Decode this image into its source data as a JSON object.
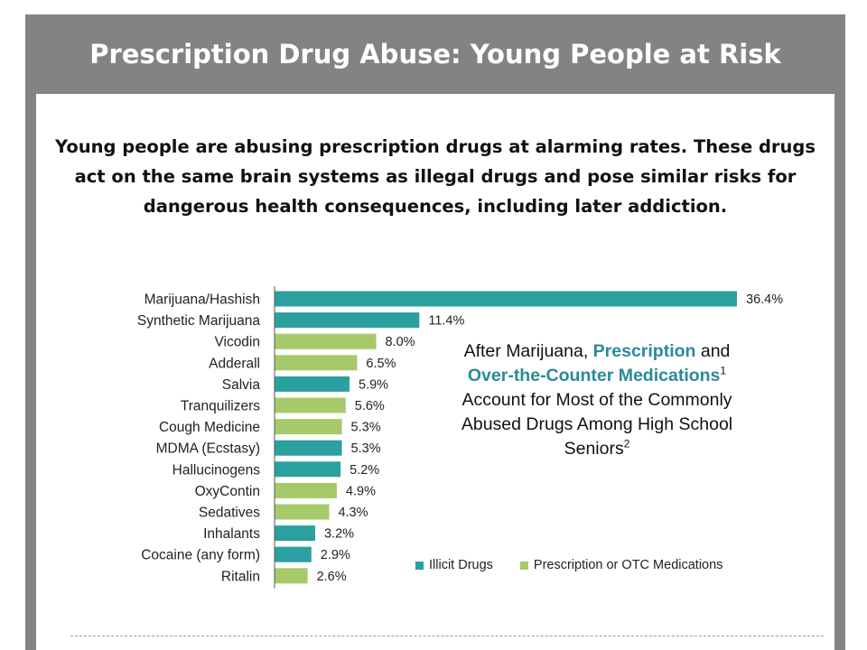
{
  "header": {
    "title": "Prescription Drug Abuse: Young People at Risk"
  },
  "intro": {
    "lines": [
      "Young people are abusing prescription drugs at alarming rates. These drugs",
      "act on the same brain systems as illegal drugs and pose similar risks for",
      "dangerous health consequences, including later addiction."
    ]
  },
  "callout": {
    "part1": "After Marijuana, ",
    "hl1": "Prescription",
    "part2": " and ",
    "hl2": "Over-the-Counter Medications",
    "sup1": "1",
    "part3": " Account for Most of the Commonly Abused Drugs Among High School Seniors",
    "sup2": "2"
  },
  "colors": {
    "illicit": "#2ba0a0",
    "prescription": "#a6c96a",
    "highlight": "#2a8a9a"
  },
  "legend": {
    "illicit": "Illicit Drugs",
    "prescription": "Prescription or OTC Medications"
  },
  "chart_data": {
    "type": "bar",
    "orientation": "horizontal",
    "categories": [
      "Marijuana/Hashish",
      "Synthetic Marijuana",
      "Vicodin",
      "Adderall",
      "Salvia",
      "Tranquilizers",
      "Cough Medicine",
      "MDMA (Ecstasy)",
      "Hallucinogens",
      "OxyContin",
      "Sedatives",
      "Inhalants",
      "Cocaine (any form)",
      "Ritalin"
    ],
    "values": [
      36.4,
      11.4,
      8.0,
      6.5,
      5.9,
      5.6,
      5.3,
      5.3,
      5.2,
      4.9,
      4.3,
      3.2,
      2.9,
      2.6
    ],
    "value_labels": [
      "36.4%",
      "11.4%",
      "8.0%",
      "6.5%",
      "5.9%",
      "5.6%",
      "5.3%",
      "5.3%",
      "5.2%",
      "4.9%",
      "4.3%",
      "3.2%",
      "2.9%",
      "2.6%"
    ],
    "groups": [
      "illicit",
      "illicit",
      "prescription",
      "prescription",
      "illicit",
      "prescription",
      "prescription",
      "illicit",
      "illicit",
      "prescription",
      "prescription",
      "illicit",
      "illicit",
      "prescription"
    ],
    "xlim": [
      0,
      36.4
    ],
    "legend_position": "bottom-right",
    "grid": false
  }
}
